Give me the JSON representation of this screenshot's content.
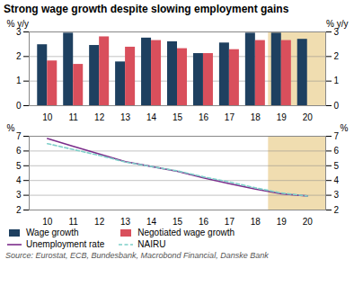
{
  "chart_data": [
    {
      "type": "bar",
      "title": "Strong wage growth despite slowing employment gains",
      "x": [
        10,
        11,
        12,
        13,
        14,
        15,
        16,
        17,
        18,
        19,
        20
      ],
      "xlim": [
        9.3,
        20.7
      ],
      "xticks": [
        10,
        11,
        12,
        13,
        14,
        15,
        16,
        17,
        18,
        19,
        20
      ],
      "series": [
        {
          "name": "Wage growth",
          "color": "#1e4060",
          "values": [
            2.48,
            2.95,
            2.45,
            1.78,
            2.75,
            2.6,
            2.12,
            2.55,
            2.95,
            2.95,
            2.7
          ]
        },
        {
          "name": "Negotiated wage growth",
          "color": "#d94f5c",
          "values": [
            1.82,
            1.68,
            2.8,
            2.38,
            2.65,
            2.32,
            2.12,
            2.28,
            2.65,
            2.65,
            null
          ]
        }
      ],
      "ylim": [
        0,
        3
      ],
      "yticks": [
        0,
        1,
        2,
        3
      ],
      "y2lim": [
        0,
        3
      ],
      "y2ticks": [
        0,
        1,
        2,
        3
      ],
      "y_label": "% y/y",
      "y2_label": "% y/y",
      "shade": {
        "from": 18.5,
        "color": "#f0ddb0"
      },
      "grid": true,
      "legend": "lower left"
    },
    {
      "type": "line",
      "x": [
        10,
        11,
        12,
        13,
        14,
        15,
        16,
        17,
        18,
        19,
        20
      ],
      "xlim": [
        9.3,
        20.7
      ],
      "xticks": [
        10,
        11,
        12,
        13,
        14,
        15,
        16,
        17,
        18,
        19,
        20
      ],
      "series": [
        {
          "name": "Unemployment rate",
          "color": "#7b2d8b",
          "line_style": "solid",
          "values": [
            6.85,
            6.32,
            5.8,
            5.28,
            4.95,
            4.62,
            4.18,
            3.78,
            3.42,
            3.1,
            2.95
          ]
        },
        {
          "name": "NAIRU",
          "color": "#7ecfc9",
          "line_style": "dashed",
          "values": [
            6.5,
            6.1,
            5.7,
            5.25,
            4.95,
            4.65,
            4.25,
            3.9,
            3.5,
            3.15,
            2.95
          ]
        }
      ],
      "ylim": [
        2,
        7
      ],
      "yticks": [
        2,
        3,
        4,
        5,
        6,
        7
      ],
      "y2lim": [
        2,
        7
      ],
      "y2ticks": [
        2,
        3,
        4,
        5,
        6,
        7
      ],
      "y_label": "%",
      "y2_label": "%",
      "shade": {
        "from": 18.5,
        "color": "#f0ddb0"
      },
      "grid": true,
      "legend": "lower left",
      "source": "Source: Eurostat, ECB, Bundesbank, Macrobond Financial, Danske Bank"
    }
  ]
}
